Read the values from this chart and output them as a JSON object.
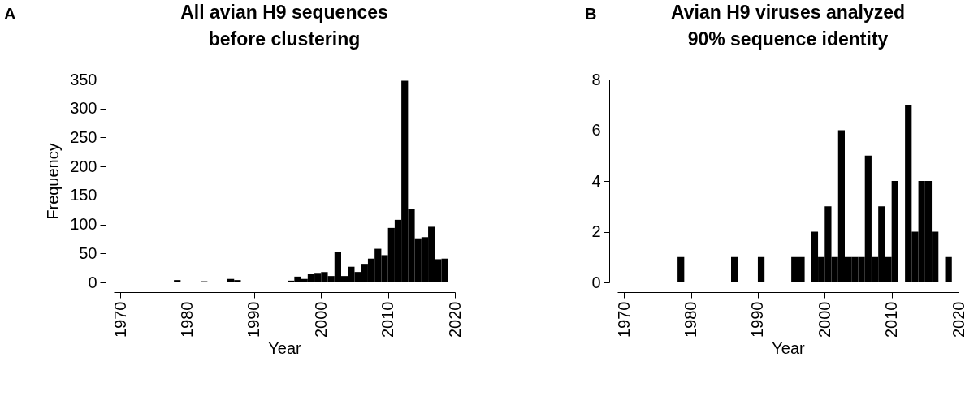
{
  "chart_data": [
    {
      "type": "histogram",
      "title": "All avian H9 sequences\nbefore clustering",
      "xlabel": "Year",
      "ylabel": "Frequency",
      "annotations": [
        "A"
      ],
      "color": "#000000",
      "grid": false,
      "bins": [
        1969,
        1970,
        1971,
        1972,
        1973,
        1974,
        1975,
        1976,
        1977,
        1978,
        1979,
        1980,
        1981,
        1982,
        1983,
        1984,
        1985,
        1986,
        1987,
        1988,
        1989,
        1990,
        1991,
        1992,
        1993,
        1994,
        1995,
        1996,
        1997,
        1998,
        1999,
        2000,
        2001,
        2002,
        2003,
        2004,
        2005,
        2006,
        2007,
        2008,
        2009,
        2010,
        2011,
        2012,
        2013,
        2014,
        2015,
        2016,
        2017,
        2018,
        2019
      ],
      "values": [
        0,
        0,
        0,
        0,
        1,
        0,
        1,
        1,
        0,
        4,
        1,
        1,
        0,
        2,
        0,
        0,
        0,
        6,
        4,
        1,
        0,
        1,
        0,
        0,
        0,
        1,
        3,
        10,
        6,
        14,
        15,
        18,
        11,
        52,
        11,
        27,
        18,
        32,
        41,
        58,
        47,
        94,
        108,
        348,
        127,
        76,
        78,
        96,
        40,
        41
      ],
      "xlim": [
        1969,
        2020
      ],
      "xticks": [
        1970,
        1980,
        1990,
        2000,
        2010,
        2020
      ],
      "ylim": [
        0,
        350
      ],
      "yticks": [
        0,
        50,
        100,
        150,
        200,
        250,
        300,
        350
      ]
    },
    {
      "type": "histogram",
      "title": "Avian H9 viruses analyzed\n90% sequence identity",
      "xlabel": "Year",
      "annotations": [
        "B"
      ],
      "color": "#000000",
      "grid": false,
      "bins": [
        1969,
        1970,
        1971,
        1972,
        1973,
        1974,
        1975,
        1976,
        1977,
        1978,
        1979,
        1980,
        1981,
        1982,
        1983,
        1984,
        1985,
        1986,
        1987,
        1988,
        1989,
        1990,
        1991,
        1992,
        1993,
        1994,
        1995,
        1996,
        1997,
        1998,
        1999,
        2000,
        2001,
        2002,
        2003,
        2004,
        2005,
        2006,
        2007,
        2008,
        2009,
        2010,
        2011,
        2012,
        2013,
        2014,
        2015,
        2016,
        2017,
        2018,
        2019
      ],
      "values": [
        0,
        0,
        0,
        0,
        0,
        0,
        0,
        0,
        0,
        1,
        0,
        0,
        0,
        0,
        0,
        0,
        0,
        1,
        0,
        0,
        0,
        1,
        0,
        0,
        0,
        0,
        1,
        1,
        0,
        2,
        1,
        3,
        1,
        6,
        1,
        1,
        1,
        5,
        1,
        3,
        1,
        4,
        0,
        7,
        2,
        4,
        4,
        2,
        0,
        1
      ],
      "xlim": [
        1969,
        2020
      ],
      "xticks": [
        1970,
        1980,
        1990,
        2000,
        2010,
        2020
      ],
      "ylim": [
        0,
        8
      ],
      "yticks": [
        0,
        2,
        4,
        6,
        8
      ]
    }
  ]
}
